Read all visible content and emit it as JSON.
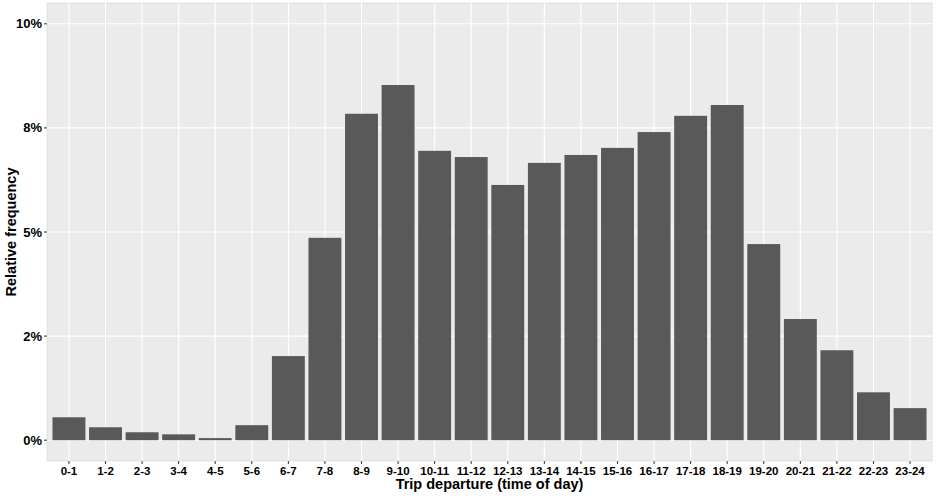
{
  "chart_data": {
    "type": "bar",
    "x_label": "Trip departure (time of day)",
    "y_label": "Relative frequency",
    "categories": [
      "0-1",
      "1-2",
      "2-3",
      "3-4",
      "4-5",
      "5-6",
      "6-7",
      "7-8",
      "8-9",
      "9-10",
      "10-11",
      "11-12",
      "12-13",
      "13-14",
      "14-15",
      "15-16",
      "16-17",
      "17-18",
      "18-19",
      "19-20",
      "20-21",
      "21-22",
      "22-23",
      "23-24"
    ],
    "values": [
      0.55,
      0.31,
      0.19,
      0.14,
      0.05,
      0.36,
      2.02,
      4.86,
      7.84,
      8.53,
      6.95,
      6.8,
      6.13,
      6.66,
      6.85,
      7.02,
      7.4,
      7.79,
      8.05,
      4.71,
      2.91,
      2.16,
      1.15,
      0.77
    ],
    "color": "#595959",
    "ylim": [
      -0.5,
      10.5
    ],
    "yticks": [
      {
        "value": 0,
        "label": "0%"
      },
      {
        "value": 2.5,
        "label": "2%"
      },
      {
        "value": 5,
        "label": "5%"
      },
      {
        "value": 7.5,
        "label": "8%"
      },
      {
        "value": 10,
        "label": "10%"
      }
    ],
    "grid": true
  }
}
